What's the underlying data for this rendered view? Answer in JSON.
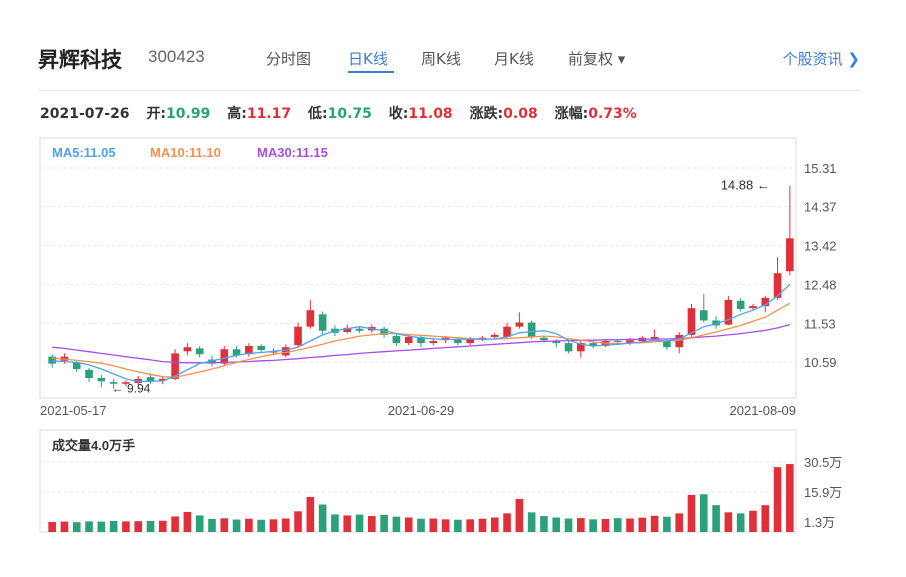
{
  "header": {
    "name": "昇辉科技",
    "code": "300423",
    "tabs": [
      {
        "label": "分时图",
        "active": false
      },
      {
        "label": "日K线",
        "active": true
      },
      {
        "label": "周K线",
        "active": false
      },
      {
        "label": "月K线",
        "active": false
      }
    ],
    "adjust_label": "前复权 ▾",
    "info_link": "个股资讯 ❯"
  },
  "quote": {
    "date": "2021-07-26",
    "open_label": "开:",
    "open": "10.99",
    "high_label": "高:",
    "high": "11.17",
    "low_label": "低:",
    "low": "10.75",
    "close_label": "收:",
    "close": "11.08",
    "change_label": "涨跌:",
    "change": "0.08",
    "pct_label": "涨幅:",
    "pct": "0.73%"
  },
  "colors": {
    "up": "#e0313a",
    "down": "#2aa17b",
    "ma5": "#4da3f0",
    "ma10": "#f5914e",
    "ma30": "#a64ee8",
    "accent": "#3b7fd1"
  },
  "chart_data": [
    {
      "type": "candlestick",
      "ma_legend": [
        "MA5:11.05",
        "MA10:11.10",
        "MA30:11.15"
      ],
      "y_ticks": [
        "15.31",
        "14.37",
        "13.42",
        "12.48",
        "11.53",
        "10.59"
      ],
      "ylim": [
        9.8,
        15.31
      ],
      "x_tick_labels": [
        {
          "index": 0,
          "label": "2021-05-17"
        },
        {
          "index": 30,
          "label": "2021-06-29"
        },
        {
          "index": 60,
          "label": "2021-08-09"
        }
      ],
      "annotations": [
        {
          "text": "14.88",
          "index": 60,
          "value": 14.88
        },
        {
          "text": "9.94",
          "index": 5,
          "value": 9.94
        }
      ],
      "candles": [
        [
          10.72,
          10.55,
          10.78,
          10.45
        ],
        [
          10.62,
          10.72,
          10.8,
          10.55
        ],
        [
          10.58,
          10.42,
          10.65,
          10.35
        ],
        [
          10.4,
          10.2,
          10.45,
          10.1
        ],
        [
          10.2,
          10.12,
          10.28,
          9.98
        ],
        [
          10.1,
          10.06,
          10.18,
          9.94
        ],
        [
          10.06,
          10.1,
          10.15,
          10.0
        ],
        [
          10.08,
          10.18,
          10.25,
          10.02
        ],
        [
          10.22,
          10.12,
          10.28,
          10.05
        ],
        [
          10.14,
          10.18,
          10.25,
          10.05
        ],
        [
          10.18,
          10.8,
          10.9,
          10.15
        ],
        [
          10.85,
          10.95,
          11.05,
          10.75
        ],
        [
          10.92,
          10.78,
          10.98,
          10.7
        ],
        [
          10.65,
          10.55,
          10.75,
          10.48
        ],
        [
          10.55,
          10.9,
          10.98,
          10.5
        ],
        [
          10.9,
          10.75,
          10.98,
          10.7
        ],
        [
          10.78,
          10.98,
          11.05,
          10.72
        ],
        [
          10.98,
          10.88,
          11.02,
          10.8
        ],
        [
          10.82,
          10.85,
          10.92,
          10.75
        ],
        [
          10.75,
          10.95,
          11.02,
          10.7
        ],
        [
          11.0,
          11.45,
          11.55,
          10.95
        ],
        [
          11.45,
          11.85,
          12.1,
          11.4
        ],
        [
          11.75,
          11.35,
          11.82,
          11.25
        ],
        [
          11.4,
          11.3,
          11.48,
          11.22
        ],
        [
          11.32,
          11.42,
          11.5,
          11.28
        ],
        [
          11.4,
          11.35,
          11.46,
          11.3
        ],
        [
          11.36,
          11.44,
          11.5,
          11.3
        ],
        [
          11.4,
          11.25,
          11.45,
          11.18
        ],
        [
          11.22,
          11.05,
          11.28,
          10.98
        ],
        [
          11.05,
          11.2,
          11.25,
          11.0
        ],
        [
          11.2,
          11.05,
          11.25,
          10.95
        ],
        [
          11.05,
          11.1,
          11.18,
          11.0
        ],
        [
          11.12,
          11.18,
          11.22,
          11.05
        ],
        [
          11.15,
          11.05,
          11.2,
          11.0
        ],
        [
          11.05,
          11.15,
          11.2,
          11.0
        ],
        [
          11.15,
          11.18,
          11.22,
          11.1
        ],
        [
          11.2,
          11.25,
          11.3,
          11.15
        ],
        [
          11.2,
          11.45,
          11.55,
          11.15
        ],
        [
          11.45,
          11.55,
          11.8,
          11.4
        ],
        [
          11.55,
          11.2,
          11.6,
          11.15
        ],
        [
          11.18,
          11.12,
          11.22,
          11.08
        ],
        [
          11.1,
          11.05,
          11.15,
          10.95
        ],
        [
          11.05,
          10.85,
          11.1,
          10.8
        ],
        [
          10.85,
          11.05,
          11.12,
          10.7
        ],
        [
          11.05,
          10.98,
          11.1,
          10.92
        ],
        [
          10.98,
          11.1,
          11.15,
          10.95
        ],
        [
          11.1,
          11.08,
          11.15,
          11.0
        ],
        [
          11.05,
          11.12,
          11.18,
          11.0
        ],
        [
          11.1,
          11.18,
          11.22,
          11.05
        ],
        [
          11.15,
          11.2,
          11.38,
          11.1
        ],
        [
          11.1,
          10.95,
          11.15,
          10.88
        ],
        [
          10.95,
          11.25,
          11.32,
          10.8
        ],
        [
          11.25,
          11.9,
          12.0,
          11.2
        ],
        [
          11.85,
          11.6,
          12.25,
          11.55
        ],
        [
          11.6,
          11.48,
          11.7,
          11.4
        ],
        [
          11.5,
          12.1,
          12.2,
          11.48
        ],
        [
          12.08,
          11.88,
          12.15,
          11.82
        ],
        [
          11.9,
          11.95,
          12.0,
          11.85
        ],
        [
          11.95,
          12.15,
          12.2,
          11.8
        ],
        [
          12.15,
          12.75,
          13.15,
          12.1
        ],
        [
          12.8,
          13.6,
          14.88,
          12.7
        ]
      ],
      "ma5": [
        10.62,
        10.6,
        10.58,
        10.52,
        10.42,
        10.3,
        10.18,
        10.12,
        10.12,
        10.13,
        10.25,
        10.4,
        10.55,
        10.62,
        10.68,
        10.75,
        10.8,
        10.82,
        10.85,
        10.88,
        10.95,
        11.1,
        11.25,
        11.35,
        11.4,
        11.45,
        11.4,
        11.35,
        11.28,
        11.22,
        11.18,
        11.15,
        11.14,
        11.14,
        11.15,
        11.14,
        11.15,
        11.2,
        11.3,
        11.33,
        11.35,
        11.28,
        11.12,
        11.02,
        10.98,
        11.0,
        11.02,
        11.05,
        11.08,
        11.12,
        11.1,
        11.15,
        11.3,
        11.45,
        11.52,
        11.62,
        11.75,
        11.85,
        11.98,
        12.2,
        12.48
      ],
      "ma10": [
        10.68,
        10.66,
        10.63,
        10.6,
        10.56,
        10.5,
        10.42,
        10.35,
        10.29,
        10.23,
        10.22,
        10.28,
        10.35,
        10.42,
        10.5,
        10.58,
        10.65,
        10.72,
        10.78,
        10.82,
        10.88,
        10.95,
        11.02,
        11.1,
        11.16,
        11.22,
        11.25,
        11.28,
        11.28,
        11.26,
        11.24,
        11.22,
        11.2,
        11.18,
        11.16,
        11.15,
        11.15,
        11.16,
        11.18,
        11.2,
        11.22,
        11.2,
        11.16,
        11.12,
        11.08,
        11.05,
        11.04,
        11.05,
        11.06,
        11.08,
        11.1,
        11.12,
        11.18,
        11.25,
        11.32,
        11.4,
        11.48,
        11.58,
        11.68,
        11.85,
        12.02
      ],
      "ma30": [
        10.95,
        10.92,
        10.88,
        10.84,
        10.8,
        10.76,
        10.72,
        10.68,
        10.64,
        10.6,
        10.58,
        10.57,
        10.57,
        10.57,
        10.58,
        10.59,
        10.6,
        10.62,
        10.63,
        10.65,
        10.67,
        10.7,
        10.72,
        10.75,
        10.77,
        10.8,
        10.82,
        10.84,
        10.86,
        10.88,
        10.9,
        10.92,
        10.94,
        10.96,
        10.98,
        11.0,
        11.02,
        11.04,
        11.06,
        11.08,
        11.09,
        11.1,
        11.11,
        11.12,
        11.12,
        11.13,
        11.13,
        11.14,
        11.14,
        11.15,
        11.15,
        11.16,
        11.18,
        11.2,
        11.22,
        11.25,
        11.28,
        11.32,
        11.36,
        11.42,
        11.5
      ]
    },
    {
      "type": "bar",
      "title": "成交量4.0万手",
      "y_ticks": [
        "30.5万",
        "15.9万",
        "1.3万"
      ],
      "ylim": [
        0,
        30.5
      ],
      "unit": "万手",
      "values": [
        1.3,
        1.5,
        1.2,
        1.6,
        1.5,
        1.8,
        1.6,
        1.7,
        1.8,
        1.9,
        4.0,
        6.2,
        4.5,
        2.8,
        3.1,
        2.5,
        2.9,
        2.4,
        2.6,
        3.0,
        6.5,
        13.5,
        9.8,
        5.0,
        4.5,
        4.9,
        4.2,
        4.8,
        3.9,
        3.5,
        2.9,
        3.0,
        2.6,
        2.4,
        2.6,
        2.9,
        3.5,
        5.5,
        12.5,
        6.0,
        4.2,
        3.5,
        3.0,
        3.2,
        2.6,
        2.8,
        3.2,
        3.0,
        3.4,
        4.3,
        3.9,
        5.5,
        14.5,
        14.8,
        9.5,
        6.0,
        5.5,
        6.8,
        9.5,
        28.0,
        29.5
      ],
      "colors_up": [
        true,
        true,
        false,
        false,
        false,
        false,
        true,
        true,
        false,
        true,
        true,
        true,
        false,
        false,
        true,
        false,
        true,
        false,
        true,
        true,
        true,
        true,
        false,
        false,
        true,
        false,
        true,
        false,
        false,
        true,
        false,
        true,
        true,
        false,
        true,
        true,
        true,
        true,
        true,
        false,
        false,
        false,
        false,
        true,
        false,
        true,
        false,
        true,
        true,
        true,
        false,
        true,
        true,
        false,
        false,
        true,
        false,
        true,
        true,
        true,
        true
      ]
    }
  ]
}
